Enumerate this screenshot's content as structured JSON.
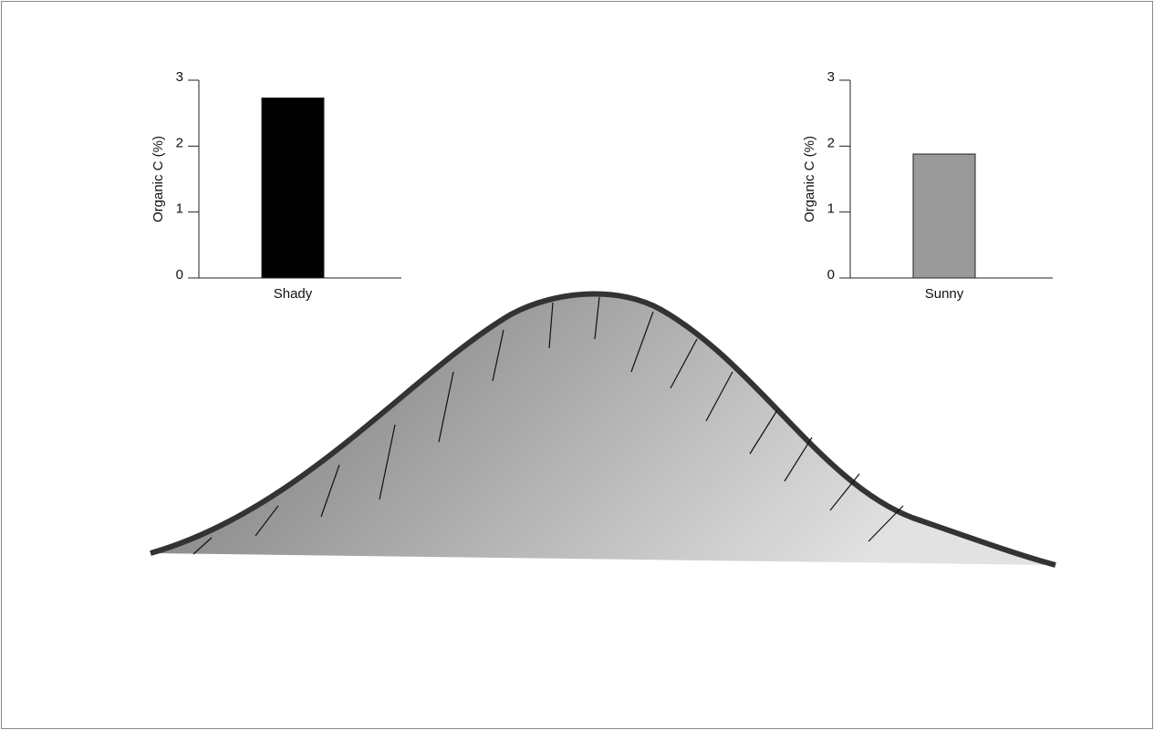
{
  "chart_data": [
    {
      "type": "bar",
      "y_label": "Organic C (%)",
      "categories": [
        "Shady"
      ],
      "values": [
        2.73
      ],
      "color": "#000000",
      "ylim": [
        0,
        3
      ],
      "yticks": [
        0,
        1,
        2,
        3
      ]
    },
    {
      "type": "bar",
      "y_label": "Organic C (%)",
      "categories": [
        "Sunny"
      ],
      "values": [
        1.88
      ],
      "color": "#9a9a9a",
      "ylim": [
        0,
        3
      ],
      "yticks": [
        0,
        1,
        2,
        3
      ]
    }
  ]
}
